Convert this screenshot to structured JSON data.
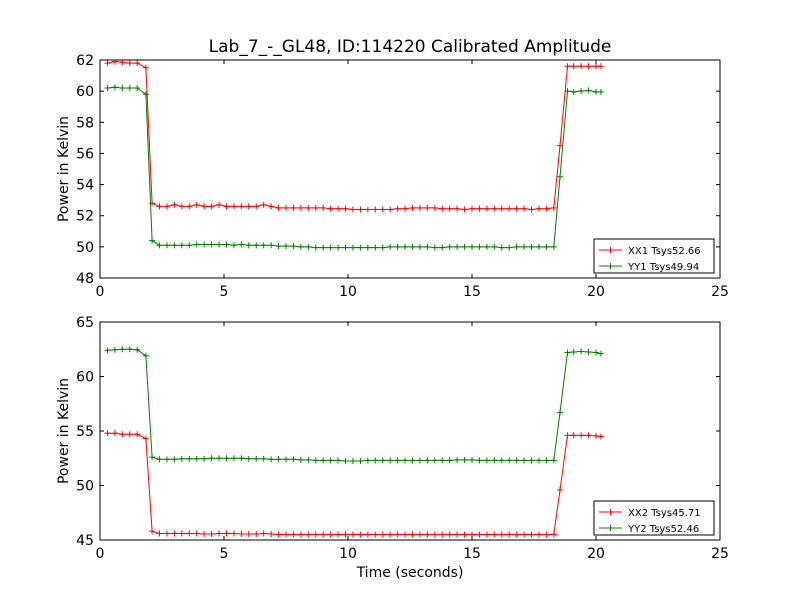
{
  "chart_data": {
    "type": "line",
    "title": "Lab_7_-_GL48, ID:114220 Calibrated Amplitude",
    "xlabel": "Time (seconds)",
    "xlim": [
      0,
      25
    ],
    "xticks": [
      0,
      5,
      10,
      15,
      20,
      25
    ],
    "x": [
      0.3,
      0.6,
      0.9,
      1.2,
      1.5,
      1.85,
      2.1,
      2.4,
      2.7,
      3.0,
      3.3,
      3.6,
      3.9,
      4.2,
      4.5,
      4.8,
      5.1,
      5.4,
      5.7,
      6.0,
      6.3,
      6.6,
      6.9,
      7.2,
      7.5,
      7.8,
      8.1,
      8.4,
      8.7,
      9.0,
      9.3,
      9.6,
      9.9,
      10.2,
      10.5,
      10.8,
      11.1,
      11.4,
      11.7,
      12.0,
      12.3,
      12.6,
      12.9,
      13.2,
      13.5,
      13.8,
      14.1,
      14.4,
      14.7,
      15.0,
      15.3,
      15.6,
      15.9,
      16.2,
      16.5,
      16.8,
      17.1,
      17.4,
      17.7,
      18.0,
      18.3,
      18.55,
      18.85,
      19.1,
      19.4,
      19.7,
      20.0,
      20.2
    ],
    "panels": [
      {
        "ylabel": "Power in Kelvin",
        "ylim": [
          48,
          62
        ],
        "yticks": [
          48,
          50,
          52,
          54,
          56,
          58,
          60,
          62
        ],
        "legend": "lower-right",
        "series": [
          {
            "name": "XX1 Tsys52.66",
            "color": "#ff0000",
            "values": [
              61.8,
              61.9,
              61.85,
              61.8,
              61.8,
              61.5,
              52.8,
              52.6,
              52.6,
              52.7,
              52.6,
              52.6,
              52.7,
              52.6,
              52.6,
              52.7,
              52.6,
              52.6,
              52.6,
              52.6,
              52.6,
              52.7,
              52.6,
              52.5,
              52.5,
              52.5,
              52.5,
              52.5,
              52.5,
              52.5,
              52.45,
              52.45,
              52.45,
              52.4,
              52.4,
              52.4,
              52.4,
              52.4,
              52.4,
              52.45,
              52.45,
              52.5,
              52.5,
              52.5,
              52.5,
              52.45,
              52.45,
              52.45,
              52.4,
              52.45,
              52.45,
              52.45,
              52.45,
              52.45,
              52.45,
              52.45,
              52.45,
              52.4,
              52.45,
              52.45,
              52.5,
              56.5,
              61.6,
              61.6,
              61.6,
              61.6,
              61.6,
              61.6
            ]
          },
          {
            "name": "YY1 Tsys49.94",
            "color": "#008000",
            "values": [
              60.2,
              60.25,
              60.2,
              60.2,
              60.2,
              59.8,
              50.4,
              50.1,
              50.1,
              50.1,
              50.1,
              50.1,
              50.15,
              50.15,
              50.15,
              50.15,
              50.15,
              50.1,
              50.15,
              50.1,
              50.1,
              50.1,
              50.1,
              50.05,
              50.05,
              50.05,
              50.0,
              50.0,
              49.95,
              49.95,
              49.95,
              49.95,
              49.95,
              49.95,
              49.95,
              49.95,
              49.95,
              49.95,
              50.0,
              50.0,
              50.0,
              50.0,
              50.0,
              50.0,
              49.95,
              49.95,
              50.0,
              50.0,
              50.0,
              50.0,
              50.0,
              50.0,
              50.0,
              49.95,
              49.95,
              50.0,
              50.0,
              50.0,
              50.0,
              50.0,
              50.0,
              54.5,
              60.0,
              59.95,
              60.0,
              60.05,
              59.95,
              59.95
            ]
          }
        ]
      },
      {
        "ylabel": "Power in Kelvin",
        "ylim": [
          45,
          65
        ],
        "yticks": [
          45,
          50,
          55,
          60,
          65
        ],
        "legend": "lower-right",
        "series": [
          {
            "name": "XX2 Tsys45.71",
            "color": "#ff0000",
            "values": [
              54.8,
              54.8,
              54.7,
              54.7,
              54.7,
              54.3,
              45.8,
              45.6,
              45.6,
              45.6,
              45.6,
              45.6,
              45.6,
              45.55,
              45.55,
              45.6,
              45.6,
              45.6,
              45.55,
              45.55,
              45.55,
              45.6,
              45.55,
              45.5,
              45.5,
              45.5,
              45.5,
              45.5,
              45.5,
              45.5,
              45.5,
              45.5,
              45.5,
              45.5,
              45.5,
              45.5,
              45.5,
              45.5,
              45.5,
              45.5,
              45.5,
              45.5,
              45.5,
              45.5,
              45.5,
              45.5,
              45.5,
              45.5,
              45.5,
              45.5,
              45.5,
              45.5,
              45.5,
              45.5,
              45.5,
              45.5,
              45.5,
              45.5,
              45.5,
              45.5,
              45.5,
              49.6,
              54.6,
              54.6,
              54.6,
              54.6,
              54.55,
              54.5
            ]
          },
          {
            "name": "YY2 Tsys52.46",
            "color": "#008000",
            "values": [
              62.4,
              62.45,
              62.5,
              62.5,
              62.45,
              61.9,
              52.6,
              52.4,
              52.4,
              52.4,
              52.45,
              52.45,
              52.45,
              52.45,
              52.5,
              52.5,
              52.5,
              52.5,
              52.5,
              52.45,
              52.45,
              52.45,
              52.4,
              52.4,
              52.4,
              52.4,
              52.35,
              52.35,
              52.3,
              52.3,
              52.3,
              52.3,
              52.25,
              52.25,
              52.25,
              52.3,
              52.3,
              52.3,
              52.3,
              52.3,
              52.3,
              52.3,
              52.3,
              52.3,
              52.3,
              52.3,
              52.3,
              52.35,
              52.35,
              52.35,
              52.3,
              52.3,
              52.3,
              52.3,
              52.3,
              52.3,
              52.3,
              52.3,
              52.3,
              52.3,
              52.3,
              56.7,
              62.2,
              62.25,
              62.3,
              62.25,
              62.2,
              62.1
            ]
          }
        ]
      }
    ]
  }
}
